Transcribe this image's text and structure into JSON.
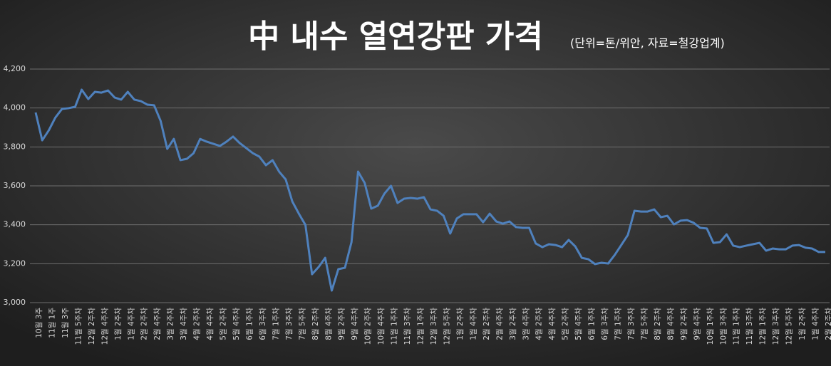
{
  "chart_data": {
    "type": "line",
    "title": "中 내수 열연강판 가격",
    "subtitle": "(단위=톤/위안, 자료=철강업계)",
    "categories": [
      "10월 3주",
      null,
      "11월 1주",
      null,
      "11월 3주",
      null,
      "11월 5주차",
      null,
      "12월 2주차",
      null,
      "12월 4주차",
      null,
      "1월 2주차",
      null,
      "1월 4주차",
      null,
      "2월 2주차",
      null,
      "2월 4주차",
      null,
      "3월 2주차",
      null,
      "3월 4주차",
      null,
      "4월 2주차",
      null,
      "4월 4주차",
      null,
      "5월 2주차",
      null,
      "5월 4주차",
      null,
      "6월 1주차",
      null,
      "6월 3주차",
      null,
      "7월 1주차",
      null,
      "7월 3주차",
      null,
      "7월 5주차",
      null,
      "8월 2주차",
      null,
      "8월 4주차",
      null,
      "9월 2주차",
      null,
      "9월 4주차",
      null,
      "10월 2주차",
      null,
      "10월 4주차",
      null,
      "11월 1주차",
      null,
      "11월 3주차",
      null,
      "12월 1주차",
      null,
      "12월 3주차",
      null,
      "12월 5주차",
      null,
      "1월 2주차",
      null,
      "1월 4주차",
      null,
      "2월 2주차",
      null,
      "2월 4주차",
      null,
      "3월 2주차",
      null,
      "3월 4주차",
      null,
      "4월 2주차",
      null,
      "4월 4주차",
      null,
      "5월 2주차",
      null,
      "5월 4주차",
      null,
      "6월 1주차",
      null,
      "6월 3주차",
      null,
      "7월 1주차",
      null,
      "7월 3주차",
      null,
      "7월 5주차",
      null,
      "8월 2주차",
      null,
      "8월 4주차",
      null,
      "9월 2주차",
      null,
      "9월 4주차",
      null,
      "10월 1주차",
      null,
      "10월 3주차",
      null,
      "11월 1주차",
      null,
      "11월 3주차",
      null,
      "12월 1주차",
      null,
      "12월 3주차",
      null,
      "12월 5주차",
      null,
      "1월 2주차",
      null,
      "1월 4주차",
      null,
      "2월 2주차"
    ],
    "values": [
      3977,
      3834,
      3885,
      3951,
      3995,
      3999,
      4006,
      4094,
      4046,
      4083,
      4079,
      4090,
      4054,
      4043,
      4083,
      4043,
      4035,
      4017,
      4014,
      3933,
      3790,
      3841,
      3732,
      3739,
      3768,
      3841,
      3827,
      3816,
      3805,
      3827,
      3853,
      3820,
      3794,
      3768,
      3750,
      3706,
      3732,
      3673,
      3633,
      3520,
      3457,
      3399,
      3146,
      3183,
      3230,
      3062,
      3172,
      3179,
      3311,
      3673,
      3615,
      3483,
      3498,
      3560,
      3600,
      3512,
      3534,
      3538,
      3534,
      3542,
      3479,
      3472,
      3446,
      3355,
      3432,
      3454,
      3454,
      3454,
      3413,
      3457,
      3417,
      3406,
      3417,
      3388,
      3384,
      3384,
      3304,
      3285,
      3300,
      3296,
      3285,
      3322,
      3289,
      3230,
      3223,
      3198,
      3205,
      3201,
      3245,
      3296,
      3348,
      3472,
      3468,
      3468,
      3479,
      3439,
      3446,
      3402,
      3421,
      3424,
      3410,
      3384,
      3381,
      3307,
      3311,
      3351,
      3293,
      3285,
      3293,
      3300,
      3307,
      3267,
      3278,
      3274,
      3274,
      3293,
      3296,
      3282,
      3278,
      3260,
      3260
    ],
    "color": "#4f81bd",
    "ylim": [
      3000,
      4200
    ],
    "yticks": [
      {
        "value": 3000,
        "label": "3,000"
      },
      {
        "value": 3200,
        "label": "3,200"
      },
      {
        "value": 3400,
        "label": "3,400"
      },
      {
        "value": 3600,
        "label": "3,600"
      },
      {
        "value": 3800,
        "label": "3,800"
      },
      {
        "value": 4000,
        "label": "4,000"
      },
      {
        "value": 4200,
        "label": "4,200"
      }
    ],
    "grid": true
  }
}
